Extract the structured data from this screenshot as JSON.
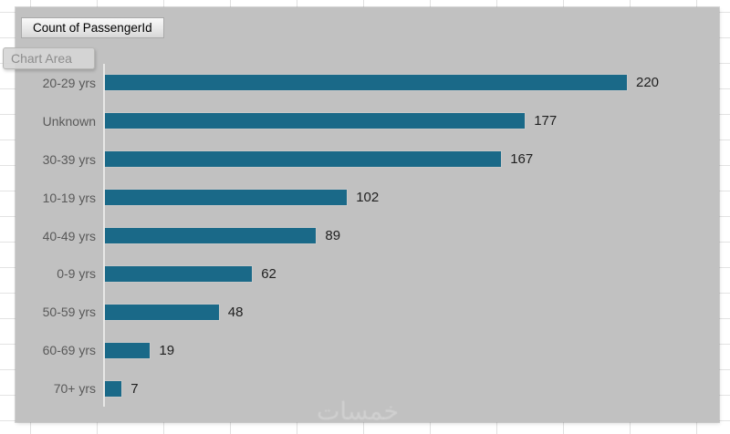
{
  "field_button": {
    "label": "Count of PassengerId"
  },
  "tooltip": {
    "label": "Chart Area"
  },
  "watermark": {
    "text": "خمسات"
  },
  "colors": {
    "bar": "#1a6988",
    "chart_bg": "#c1c1c1",
    "category_text": "#595959",
    "value_text": "#1f1f1f",
    "axis_line": "#e8e8e6"
  },
  "chart_data": {
    "type": "bar",
    "orientation": "horizontal",
    "title": "Count of PassengerId",
    "categories": [
      "20-29 yrs",
      "Unknown",
      "30-39 yrs",
      "10-19 yrs",
      "40-49 yrs",
      "0-9 yrs",
      "50-59 yrs",
      "60-69 yrs",
      "70+ yrs"
    ],
    "values": [
      220,
      177,
      167,
      102,
      89,
      62,
      48,
      19,
      7
    ],
    "data_labels": [
      220,
      177,
      167,
      102,
      89,
      62,
      48,
      19,
      7
    ],
    "xlabel": "",
    "ylabel": "",
    "xlim": [
      0,
      250
    ],
    "grid": false,
    "legend": "none",
    "sort_order": "descending"
  }
}
